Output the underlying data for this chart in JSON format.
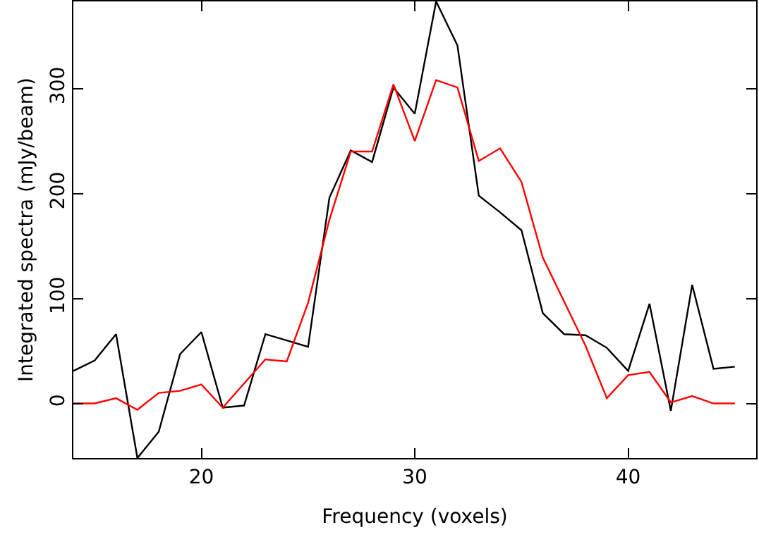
{
  "chart_data": {
    "type": "line",
    "xlabel": "Frequency (voxels)",
    "ylabel": "Integrated spectra (mJy/beam)",
    "x": [
      14,
      15,
      16,
      17,
      18,
      19,
      20,
      21,
      22,
      23,
      24,
      25,
      26,
      27,
      28,
      29,
      30,
      31,
      32,
      33,
      34,
      35,
      36,
      37,
      38,
      39,
      40,
      41,
      42,
      43,
      44,
      45
    ],
    "series": [
      {
        "color": "#000000",
        "values": [
          31,
          41,
          66,
          -52,
          -27,
          47,
          68,
          -4,
          -2,
          66,
          60,
          54,
          196,
          241,
          230,
          301,
          276,
          383,
          341,
          198,
          182,
          165,
          86,
          66,
          65,
          53,
          31,
          95,
          -7,
          113,
          33,
          35
        ]
      },
      {
        "color": "#ff0000",
        "values": [
          0,
          0,
          5,
          -6,
          10,
          12,
          18,
          -4,
          19,
          42,
          40,
          96,
          175,
          240,
          240,
          304,
          250,
          308,
          301,
          231,
          243,
          211,
          139,
          97,
          55,
          5,
          27,
          30,
          1,
          7,
          0,
          0
        ]
      }
    ],
    "xlim": [
      14,
      46
    ],
    "ylim": [
      -52,
      383
    ],
    "xticks": [
      20,
      30,
      40
    ],
    "yticks": [
      0,
      100,
      200,
      300
    ],
    "grid": false,
    "line_style": "solid",
    "marker": "none"
  }
}
